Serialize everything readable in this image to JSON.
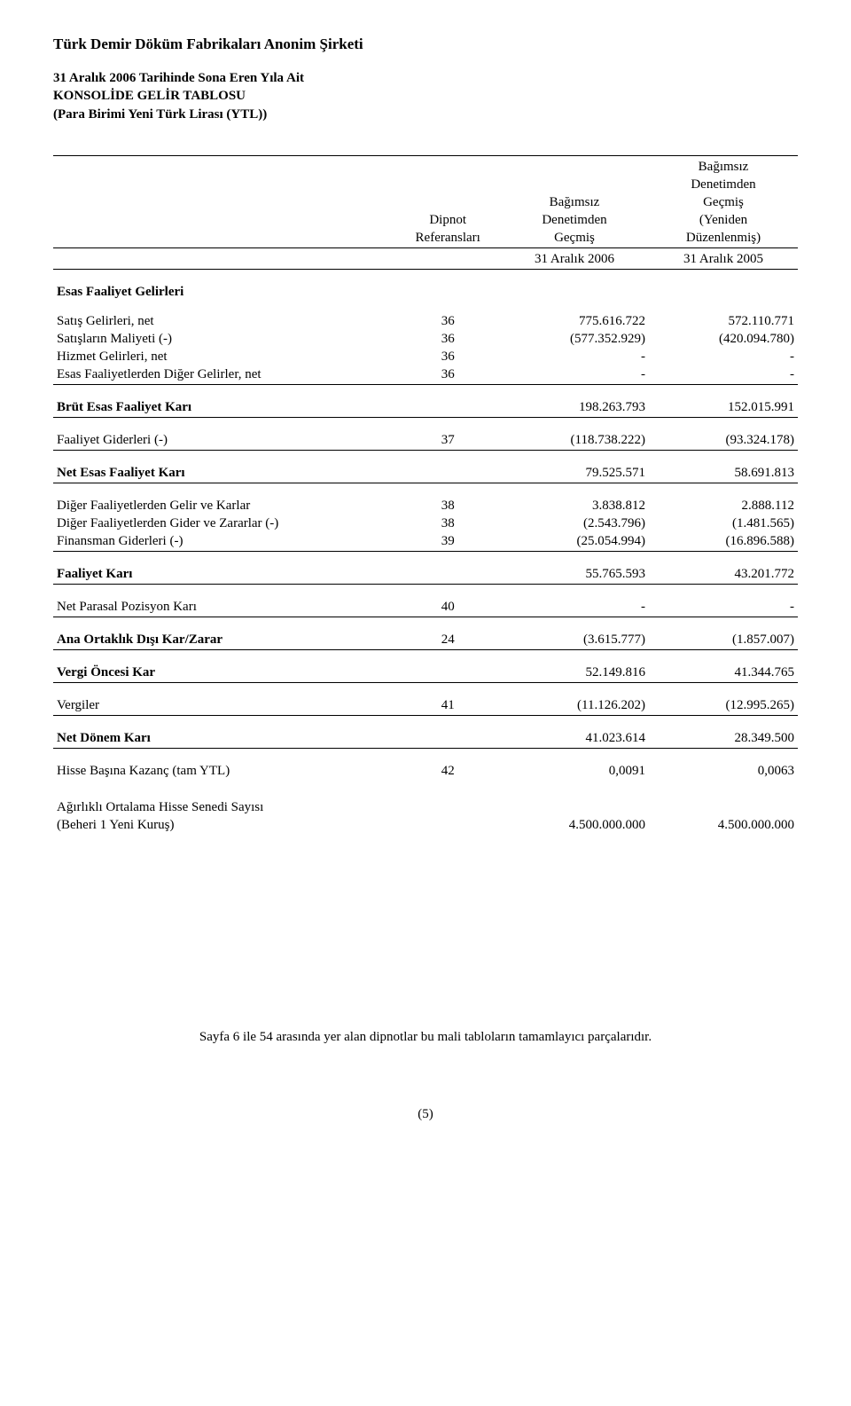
{
  "header": {
    "company": "Türk Demir Döküm Fabrikaları Anonim Şirketi",
    "line1": "31 Aralık 2006 Tarihinde Sona Eren Yıla Ait",
    "line2": "KONSOLİDE GELİR TABLOSU",
    "line3": "(Para Birimi Yeni Türk Lirası (YTL))"
  },
  "columns": {
    "ref_l1": "Dipnot",
    "ref_l2": "Referansları",
    "col1_l1": "Bağımsız",
    "col1_l2": "Denetimden",
    "col1_l3": "Geçmiş",
    "col1_date": "31 Aralık 2006",
    "col2_l1": "Bağımsız",
    "col2_l2": "Denetimden",
    "col2_l3": "Geçmiş",
    "col2_l4": "(Yeniden",
    "col2_l5": "Düzenlenmiş)",
    "col2_date": "31 Aralık 2005"
  },
  "rows": {
    "esas_gelir_hdr": "Esas Faaliyet Gelirleri",
    "satis_gelir": {
      "label": "Satış Gelirleri, net",
      "ref": "36",
      "v1": "775.616.722",
      "v2": "572.110.771"
    },
    "satis_maliyet": {
      "label": "Satışların Maliyeti (-)",
      "ref": "36",
      "v1": "(577.352.929)",
      "v2": "(420.094.780)"
    },
    "hizmet_gelir": {
      "label": "Hizmet Gelirleri, net",
      "ref": "36",
      "v1": "-",
      "v2": "-"
    },
    "diger_gelir": {
      "label": "Esas Faaliyetlerden Diğer Gelirler, net",
      "ref": "36",
      "v1": "-",
      "v2": "-"
    },
    "brut_kar": {
      "label": "Brüt Esas Faaliyet Karı",
      "ref": "",
      "v1": "198.263.793",
      "v2": "152.015.991"
    },
    "faaliyet_gider": {
      "label": "Faaliyet Giderleri (-)",
      "ref": "37",
      "v1": "(118.738.222)",
      "v2": "(93.324.178)"
    },
    "net_esas_kar": {
      "label": "Net Esas Faaliyet Karı",
      "ref": "",
      "v1": "79.525.571",
      "v2": "58.691.813"
    },
    "diger_gelirk": {
      "label": "Diğer Faaliyetlerden Gelir ve Karlar",
      "ref": "38",
      "v1": "3.838.812",
      "v2": "2.888.112"
    },
    "diger_giderz": {
      "label": "Diğer Faaliyetlerden Gider ve Zararlar (-)",
      "ref": "38",
      "v1": "(2.543.796)",
      "v2": "(1.481.565)"
    },
    "finansman": {
      "label": "Finansman Giderleri (-)",
      "ref": "39",
      "v1": "(25.054.994)",
      "v2": "(16.896.588)"
    },
    "faaliyet_kar": {
      "label": "Faaliyet Karı",
      "ref": "",
      "v1": "55.765.593",
      "v2": "43.201.772"
    },
    "net_parasal": {
      "label": "Net Parasal Pozisyon Karı",
      "ref": "40",
      "v1": "-",
      "v2": "-"
    },
    "ana_ortaklik": {
      "label": "Ana Ortaklık Dışı Kar/Zarar",
      "ref": "24",
      "v1": "(3.615.777)",
      "v2": "(1.857.007)"
    },
    "vergi_oncesi": {
      "label": "Vergi Öncesi Kar",
      "ref": "",
      "v1": "52.149.816",
      "v2": "41.344.765"
    },
    "vergiler": {
      "label": "Vergiler",
      "ref": "41",
      "v1": "(11.126.202)",
      "v2": "(12.995.265)"
    },
    "net_donem": {
      "label": "Net Dönem Karı",
      "ref": "",
      "v1": "41.023.614",
      "v2": "28.349.500"
    },
    "hisse_kazanc": {
      "label": "Hisse Başına Kazanç (tam YTL)",
      "ref": "42",
      "v1": "0,0091",
      "v2": "0,0063"
    },
    "agirlikli_l1": "Ağırlıklı Ortalama Hisse Senedi Sayısı",
    "agirlikli_l2": {
      "label": " (Beheri 1 Yeni Kuruş)",
      "ref": "",
      "v1": "4.500.000.000",
      "v2": "4.500.000.000"
    }
  },
  "footnote": "Sayfa 6 ile 54 arasında yer alan dipnotlar bu mali tabloların tamamlayıcı parçalarıdır.",
  "pagenum": "(5)"
}
